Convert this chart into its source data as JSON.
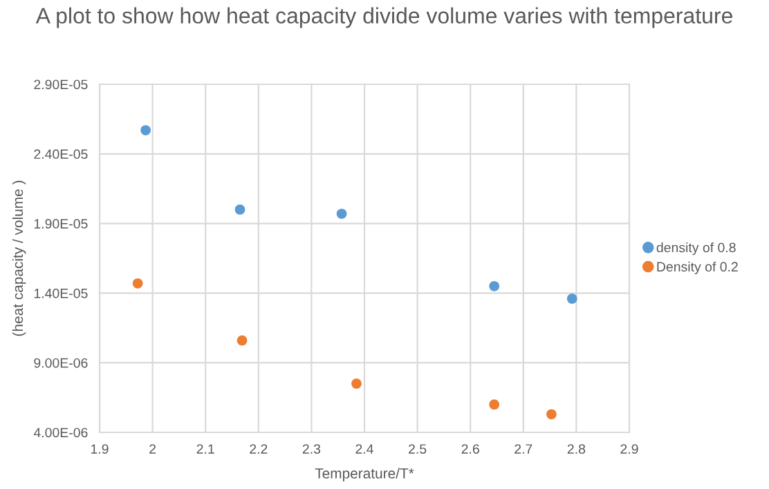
{
  "chart_data": {
    "type": "scatter",
    "title": "A plot to show how heat capacity divide volume varies with temperature",
    "xlabel": "Temperature/T*",
    "ylabel": "(heat capacity / volume )",
    "series": [
      {
        "name": "density of 0.8",
        "color": "#5b9bd5",
        "x": [
          1.987,
          2.165,
          2.357,
          2.645,
          2.792
        ],
        "values": [
          2.57e-05,
          2e-05,
          1.97e-05,
          1.45e-05,
          1.36e-05
        ]
      },
      {
        "name": "Density of 0.2",
        "color": "#ed7d31",
        "x": [
          1.972,
          2.169,
          2.385,
          2.645,
          2.753
        ],
        "values": [
          1.47e-05,
          1.06e-05,
          7.5e-06,
          6e-06,
          5.3e-06
        ]
      }
    ],
    "xlim": [
      1.9,
      2.9
    ],
    "xticks": [
      1.9,
      2,
      2.1,
      2.2,
      2.3,
      2.4,
      2.5,
      2.6,
      2.7,
      2.8,
      2.9
    ],
    "ylim": [
      4e-06,
      2.9e-05
    ],
    "yticks": [
      {
        "value": 4e-06,
        "label": "4.00E-06"
      },
      {
        "value": 9e-06,
        "label": "9.00E-06"
      },
      {
        "value": 1.4e-05,
        "label": "1.40E-05"
      },
      {
        "value": 1.9e-05,
        "label": "1.90E-05"
      },
      {
        "value": 2.4e-05,
        "label": "2.40E-05"
      },
      {
        "value": 2.9e-05,
        "label": "2.90E-05"
      }
    ],
    "grid": true,
    "legend": "right",
    "marker": "circle"
  }
}
